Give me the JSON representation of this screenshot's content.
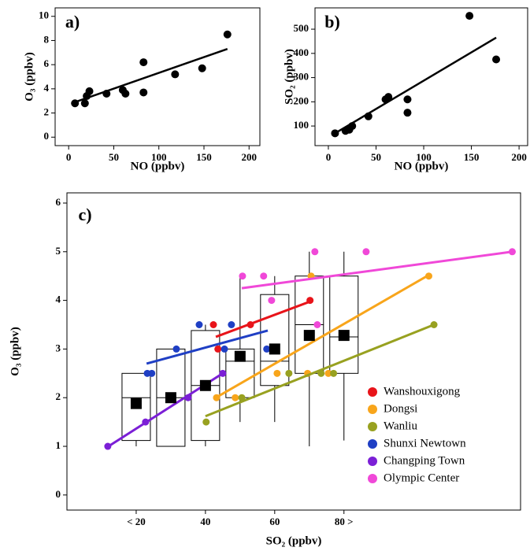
{
  "chart_data": [
    {
      "type": "scatter",
      "title": "a)",
      "xlabel": "NO (ppbv)",
      "ylabel": "O₃ (ppbv)",
      "x": [
        7,
        18,
        20,
        23,
        42,
        60,
        63,
        83,
        83,
        118,
        148,
        176
      ],
      "y": [
        2.8,
        2.8,
        3.4,
        3.8,
        3.6,
        3.9,
        3.6,
        6.2,
        3.7,
        5.2,
        5.7,
        8.5
      ],
      "fit": {
        "x": [
          7,
          176
        ],
        "y": [
          2.9,
          7.3
        ]
      },
      "color": "#000000",
      "xlim": [
        -15,
        212
      ],
      "ylim": [
        -0.7,
        10.7
      ],
      "xticks": [
        0,
        50,
        100,
        150,
        200
      ],
      "yticks": [
        0,
        2,
        4,
        6,
        8,
        10
      ]
    },
    {
      "type": "scatter",
      "title": "b)",
      "xlabel": "NO (ppbv)",
      "ylabel": "SO₂ (ppbv)",
      "x": [
        7,
        18,
        22,
        25,
        42,
        60,
        63,
        83,
        83,
        148,
        176
      ],
      "y": [
        70,
        80,
        85,
        100,
        140,
        210,
        220,
        210,
        155,
        555,
        375
      ],
      "fit": {
        "x": [
          7,
          176
        ],
        "y": [
          70,
          465
        ]
      },
      "color": "#000000",
      "xlim": [
        -14,
        209
      ],
      "ylim": [
        19,
        588
      ],
      "xticks": [
        0,
        50,
        100,
        150,
        200
      ],
      "yticks": [
        100,
        200,
        300,
        400,
        500
      ]
    },
    {
      "type": "box",
      "title": "c)",
      "xlabel": "SO₂ (ppbv)",
      "ylabel": "O₃ (ppbv)",
      "xlim": [
        0,
        131
      ],
      "ylim": [
        -0.31,
        6.21
      ],
      "xticks": [
        {
          "value": 20,
          "label": "< 20"
        },
        40,
        60,
        {
          "value": 80,
          "label": "80 >"
        }
      ],
      "yticks": [
        0,
        1,
        2,
        3,
        4,
        5,
        6
      ],
      "boxes": [
        {
          "x": 20,
          "whisker_low": 1.0,
          "q1": 1.12,
          "median": 2.0,
          "q3": 2.5,
          "whisker_high": 2.5,
          "mean": 1.88
        },
        {
          "x": 30,
          "whisker_low": 1.0,
          "q1": 1.0,
          "median": 2.0,
          "q3": 3.0,
          "whisker_high": 3.0,
          "mean": 2.0
        },
        {
          "x": 40,
          "whisker_low": 1.0,
          "q1": 1.12,
          "median": 2.25,
          "q3": 3.38,
          "whisker_high": 3.5,
          "mean": 2.25
        },
        {
          "x": 50,
          "whisker_low": 1.5,
          "q1": 2.0,
          "median": 2.75,
          "q3": 3.0,
          "whisker_high": 4.5,
          "mean": 2.85
        },
        {
          "x": 60,
          "whisker_low": 1.5,
          "q1": 2.25,
          "median": 2.75,
          "q3": 4.12,
          "whisker_high": 4.5,
          "mean": 3.0
        },
        {
          "x": 70,
          "whisker_low": 1.0,
          "q1": 2.5,
          "median": 3.5,
          "q3": 4.5,
          "whisker_high": 5.0,
          "mean": 3.28
        },
        {
          "x": 80,
          "whisker_low": 1.12,
          "q1": 2.5,
          "median": 3.25,
          "q3": 4.5,
          "whisker_high": 5.0,
          "mean": 3.28
        }
      ],
      "series": [
        {
          "name": "Wanshouxigong",
          "color": "#e8141a",
          "x": [
            42.3,
            43.6,
            53,
            70.2
          ],
          "y": [
            3.5,
            3.0,
            3.5,
            4.0
          ],
          "fit": {
            "x": [
              43,
              70
            ],
            "y": [
              3.25,
              3.97
            ]
          }
        },
        {
          "name": "Dongsi",
          "color": "#f8a51b",
          "x": [
            43.2,
            48.6,
            60.7,
            70.5,
            69.5,
            75.5,
            104.5
          ],
          "y": [
            2.0,
            2.0,
            2.5,
            4.5,
            2.5,
            2.5,
            4.5
          ],
          "fit": {
            "x": [
              43,
              104
            ],
            "y": [
              2.0,
              4.5
            ]
          }
        },
        {
          "name": "Wanliu",
          "color": "#98a120",
          "x": [
            40.2,
            50.5,
            64.1,
            73.4,
            77,
            106
          ],
          "y": [
            1.5,
            2.0,
            2.5,
            2.5,
            2.5,
            3.5
          ],
          "fit": {
            "x": [
              40,
              106
            ],
            "y": [
              1.62,
              3.5
            ]
          }
        },
        {
          "name": "Shunxi Newtown",
          "color": "#1f3fc4",
          "x": [
            23.2,
            24.5,
            31.6,
            38.2,
            45.5,
            47.5,
            57.7
          ],
          "y": [
            2.5,
            2.5,
            3.0,
            3.5,
            3.0,
            3.5,
            3.0
          ],
          "fit": {
            "x": [
              23,
              58
            ],
            "y": [
              2.7,
              3.38
            ]
          }
        },
        {
          "name": "Changping Town",
          "color": "#7b1fd6",
          "x": [
            11.8,
            22.7,
            35,
            45
          ],
          "y": [
            1.0,
            1.5,
            2.0,
            2.5
          ],
          "fit": {
            "x": [
              12,
              45
            ],
            "y": [
              1.0,
              2.5
            ]
          }
        },
        {
          "name": "Olympic Center",
          "color": "#f048d8",
          "x": [
            50.7,
            56.8,
            59.1,
            71.6,
            72.3,
            86.4,
            128.6
          ],
          "y": [
            4.5,
            4.5,
            4.0,
            5.0,
            3.5,
            5.0,
            5.0
          ],
          "fit": {
            "x": [
              50.5,
              128.6
            ],
            "y": [
              4.25,
              5.0
            ]
          }
        }
      ]
    }
  ]
}
